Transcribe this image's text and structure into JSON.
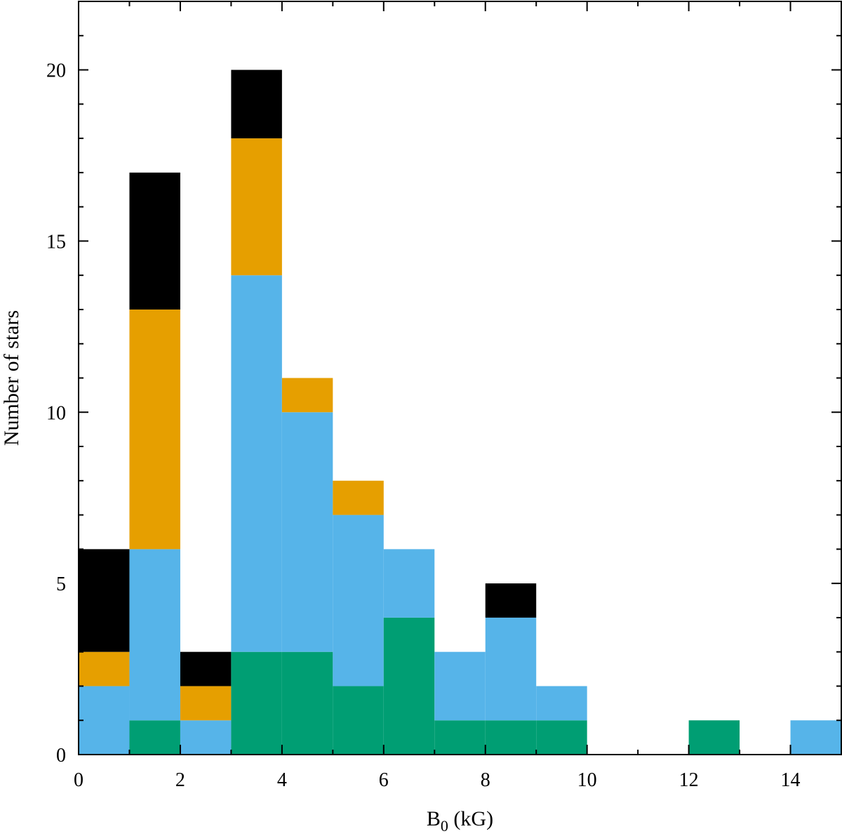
{
  "chart_data": {
    "type": "bar",
    "stacked": true,
    "title": "",
    "xlabel": "B",
    "xlabel_subscript": "0",
    "xlabel_unit": " (kG)",
    "ylabel": "Number of stars",
    "xlim": [
      0,
      15
    ],
    "ylim": [
      0,
      22
    ],
    "xticks": [
      0,
      2,
      4,
      6,
      8,
      10,
      12,
      14
    ],
    "yticks": [
      0,
      5,
      10,
      15,
      20
    ],
    "grid": false,
    "legend": "none",
    "bin_width": 1,
    "bin_starts": [
      0,
      1,
      2,
      3,
      4,
      5,
      6,
      7,
      8,
      9,
      10,
      11,
      12,
      13,
      14
    ],
    "series": [
      {
        "color": "#009E73",
        "values": [
          0,
          1,
          0,
          3,
          3,
          2,
          4,
          1,
          1,
          1,
          0,
          0,
          1,
          0,
          0
        ]
      },
      {
        "color": "#56B4E9",
        "values": [
          2,
          5,
          1,
          11,
          7,
          5,
          2,
          2,
          3,
          1,
          0,
          0,
          0,
          0,
          1
        ]
      },
      {
        "color": "#E69F00",
        "values": [
          1,
          7,
          1,
          4,
          1,
          1,
          0,
          0,
          0,
          0,
          0,
          0,
          0,
          0,
          0
        ]
      },
      {
        "color": "#000000",
        "values": [
          3,
          4,
          1,
          2,
          0,
          0,
          0,
          0,
          1,
          0,
          0,
          0,
          0,
          0,
          0
        ]
      }
    ]
  }
}
